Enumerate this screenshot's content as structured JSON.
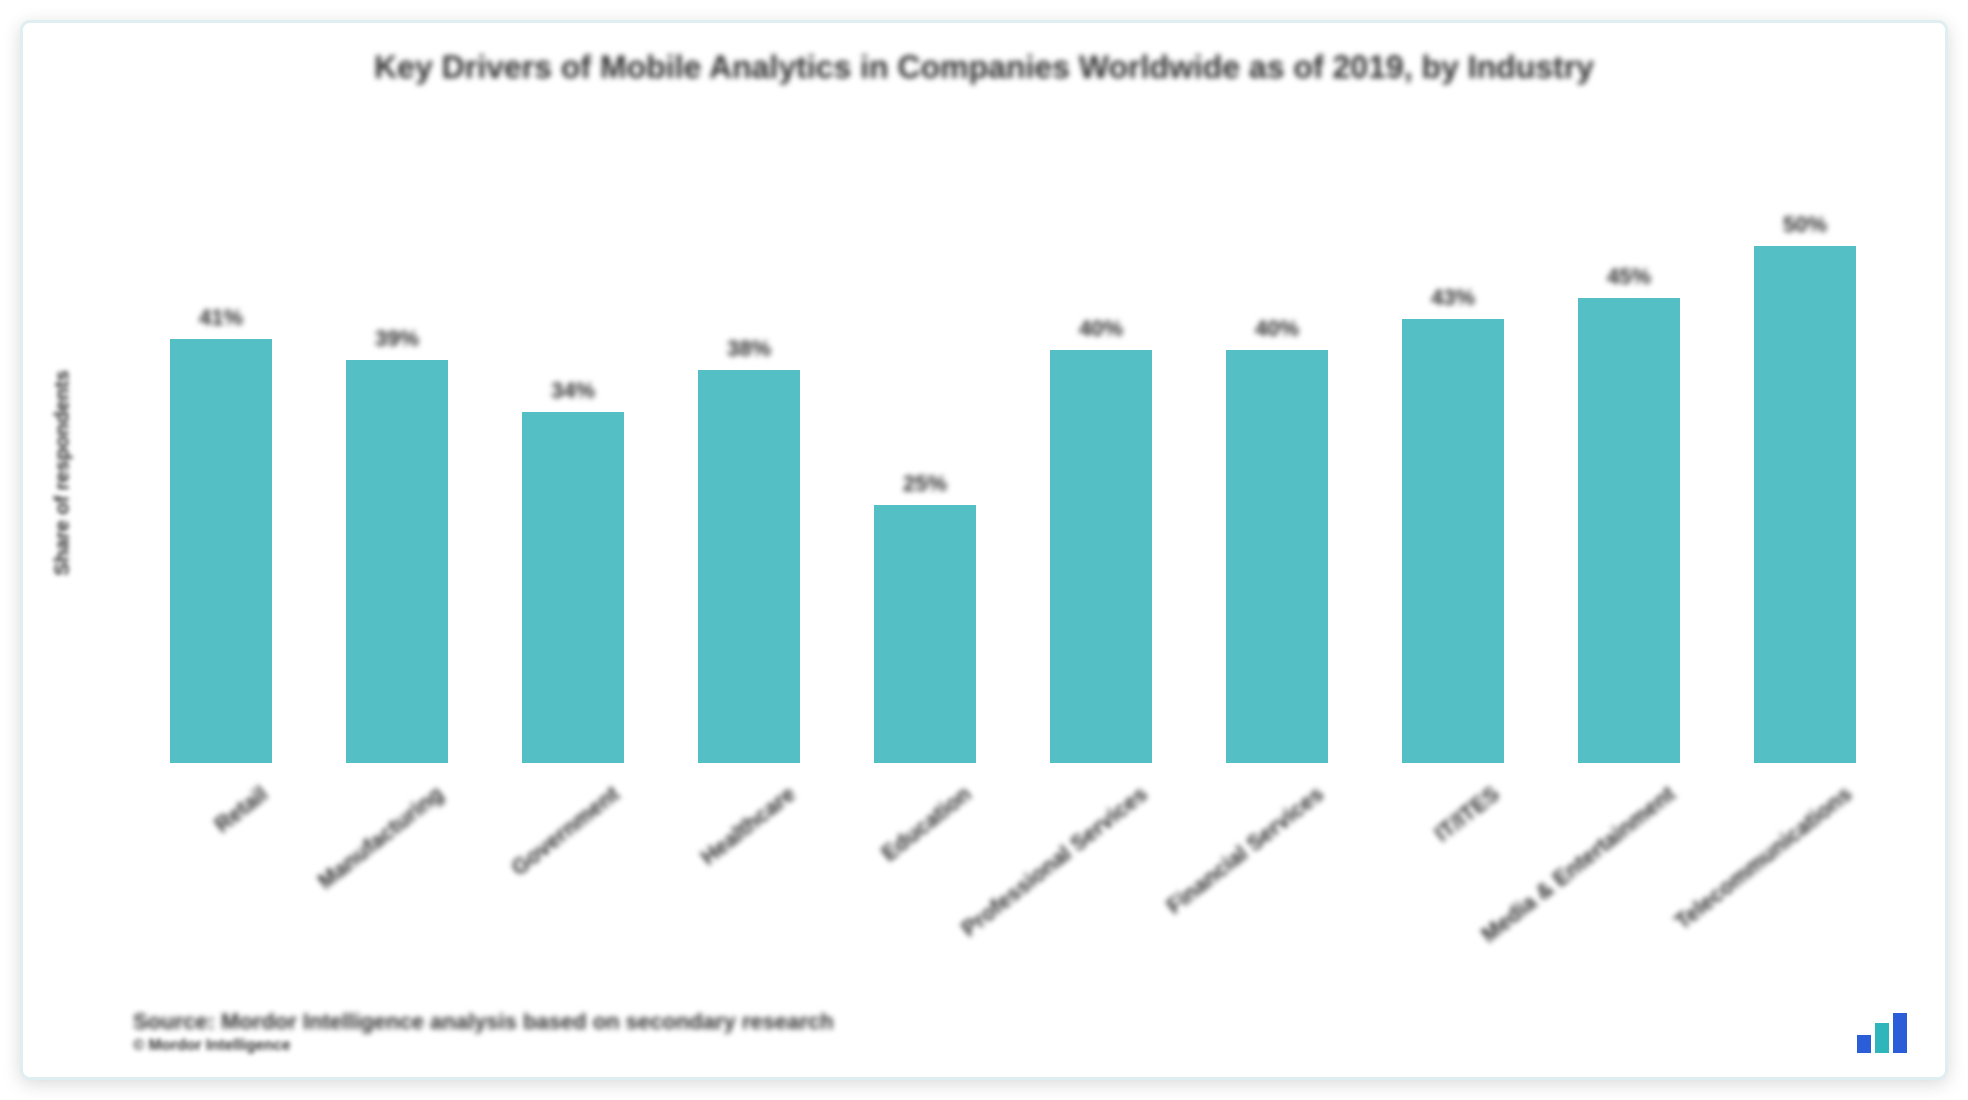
{
  "chart": {
    "type": "bar",
    "title": "Key Drivers of Mobile Analytics in Companies Worldwide as of 2019, by Industry",
    "title_fontsize": 32,
    "title_color": "#2e2e2e",
    "y_axis_label": "Share of respondents",
    "y_axis_fontsize": 20,
    "y_axis_color": "#2e2e2e",
    "background_color": "#ffffff",
    "frame_border_color": "#dfeef0",
    "ylim": [
      0,
      60
    ],
    "bar_fill": "#54bfc4",
    "bar_width_ratio": 0.58,
    "value_label_fontsize": 22,
    "value_label_color": "#2e2e2e",
    "category_label_fontsize": 22,
    "category_label_color": "#2e2e2e",
    "category_label_rotation_deg": -38,
    "categories": [
      "Retail",
      "Manufacturing",
      "Government",
      "Healthcare",
      "Education",
      "Professional Services",
      "Financial Services",
      "IT/ITES",
      "Media & Entertainment",
      "Telecommunications"
    ],
    "values": [
      41,
      39,
      34,
      38,
      25,
      40,
      40,
      43,
      45,
      50
    ],
    "source_line": "Source: Mordor Intelligence analysis based on secondary research",
    "source_line2": "© Mordor Intelligence",
    "source_fontsize": 22,
    "source_color": "#2e2e2e",
    "logo_colors": [
      "#2b5dd8",
      "#2fb6bb",
      "#2b5dd8"
    ]
  }
}
